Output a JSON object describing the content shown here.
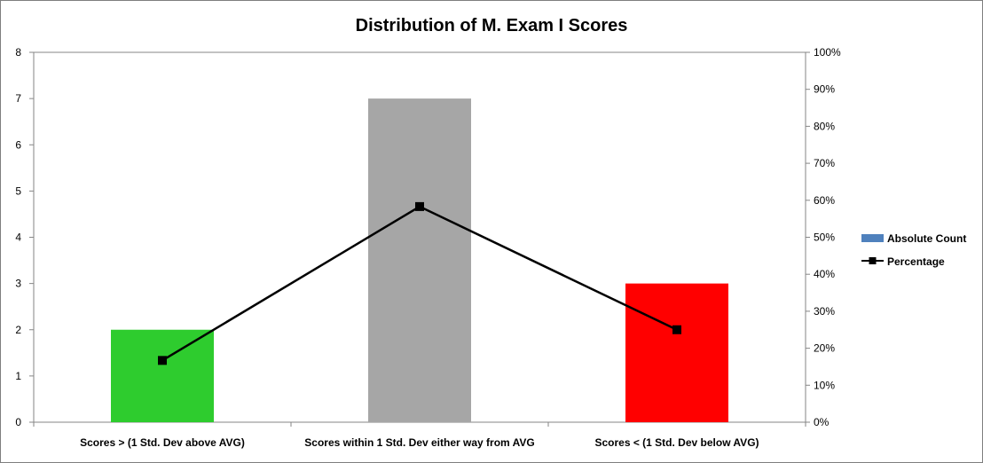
{
  "chart_data": {
    "type": "bar",
    "title": "Distribution of M. Exam I Scores",
    "categories": [
      "Scores > (1 Std. Dev above AVG)",
      "Scores within 1 Std. Dev either way from AVG",
      "Scores < (1 Std. Dev below AVG)"
    ],
    "series": [
      {
        "name": "Absolute Count",
        "type": "bar",
        "axis": "left",
        "values": [
          2,
          7,
          3
        ],
        "colors": [
          "#2ecc2e",
          "#a6a6a6",
          "#ff0000"
        ],
        "legend_color": "#4f81bd"
      },
      {
        "name": "Percentage",
        "type": "line",
        "axis": "right",
        "values": [
          16.7,
          58.3,
          25.0
        ],
        "color": "#000000"
      }
    ],
    "y_left": {
      "min": 0,
      "max": 8,
      "step": 1,
      "ticks": [
        "0",
        "1",
        "2",
        "3",
        "4",
        "5",
        "6",
        "7",
        "8"
      ]
    },
    "y_right": {
      "min": 0,
      "max": 100,
      "step": 10,
      "ticks": [
        "0%",
        "10%",
        "20%",
        "30%",
        "40%",
        "50%",
        "60%",
        "70%",
        "80%",
        "90%",
        "100%"
      ]
    },
    "legend_position": "right",
    "grid": false
  }
}
